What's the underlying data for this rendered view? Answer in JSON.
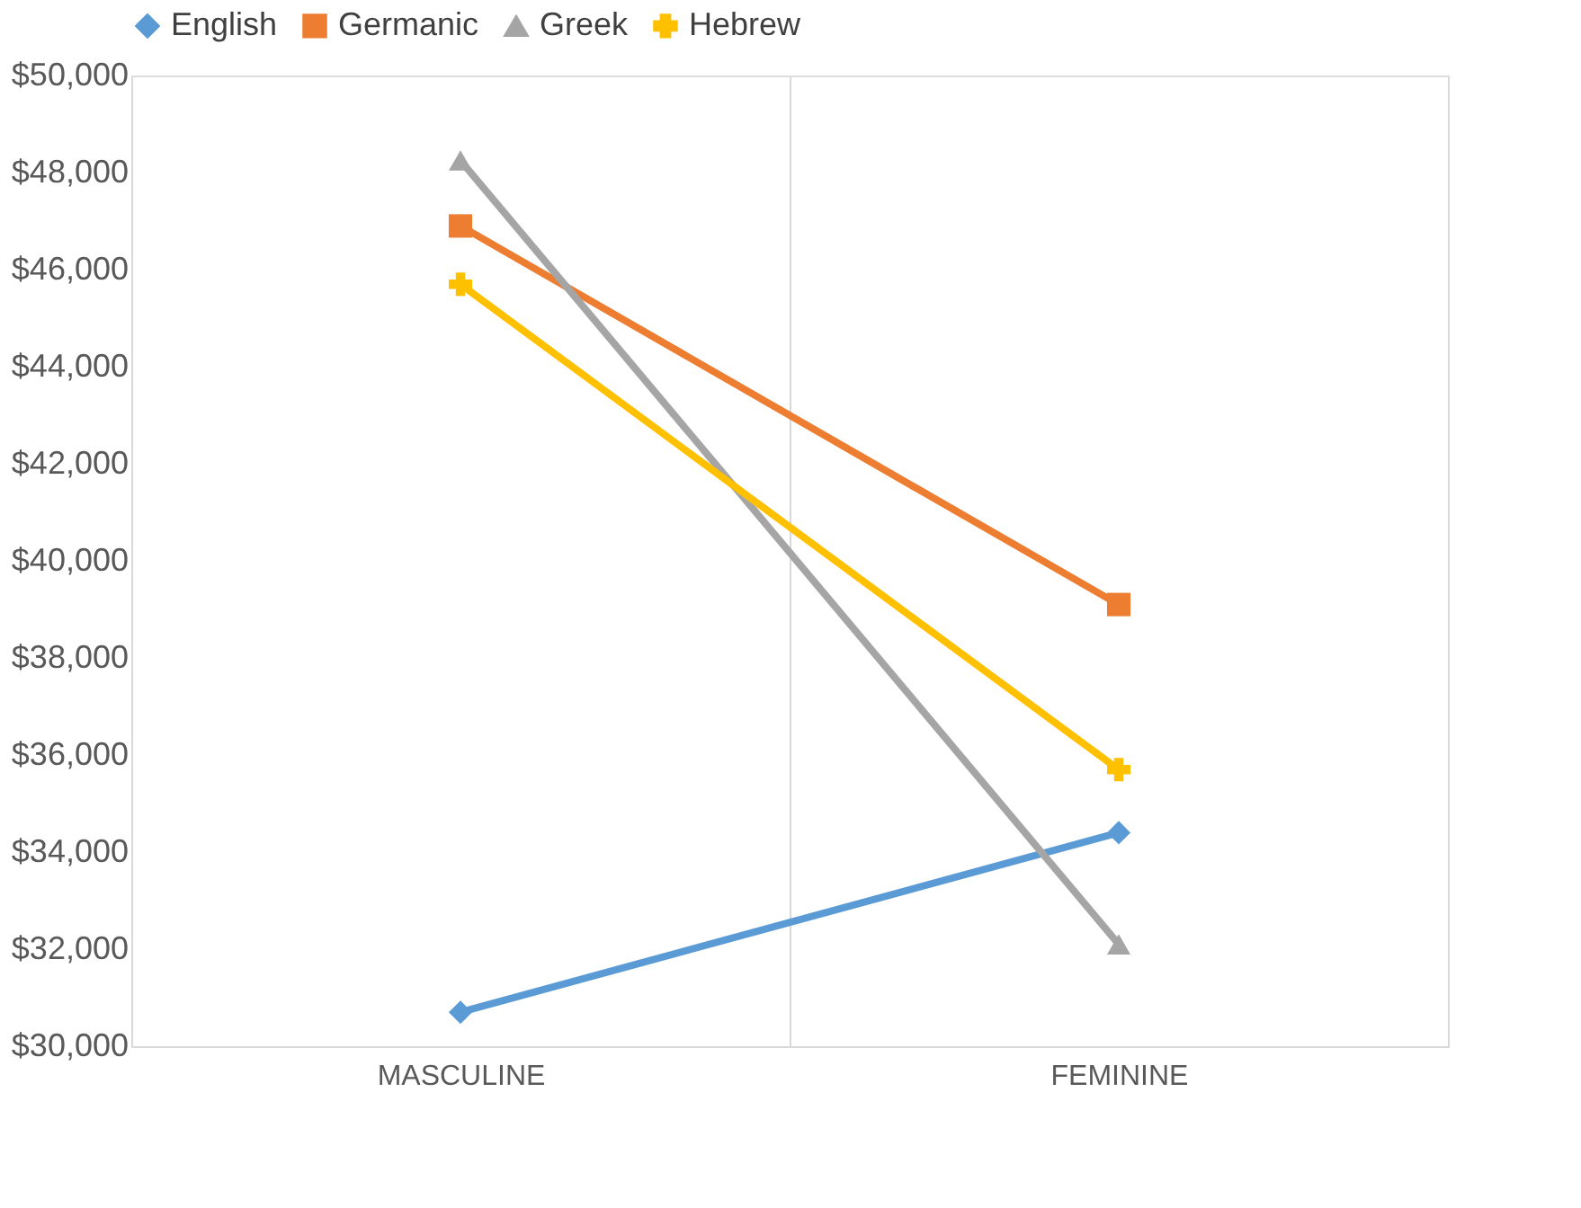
{
  "chart_data": {
    "type": "line",
    "categories": [
      "MASCULINE",
      "FEMININE"
    ],
    "series": [
      {
        "name": "English",
        "color": "#5b9bd5",
        "marker": "diamond",
        "values": [
          30700,
          34400
        ]
      },
      {
        "name": "Germanic",
        "color": "#ed7d31",
        "marker": "square",
        "values": [
          46900,
          39100
        ]
      },
      {
        "name": "Greek",
        "color": "#a5a5a5",
        "marker": "triangle",
        "values": [
          48250,
          32100
        ]
      },
      {
        "name": "Hebrew",
        "color": "#ffc000",
        "marker": "cross",
        "values": [
          45700,
          35700
        ]
      }
    ],
    "ylim": [
      30000,
      50000
    ],
    "yticks": [
      {
        "value": 30000,
        "label": "$30,000"
      },
      {
        "value": 32000,
        "label": "$32,000"
      },
      {
        "value": 34000,
        "label": "$34,000"
      },
      {
        "value": 36000,
        "label": "$36,000"
      },
      {
        "value": 38000,
        "label": "$38,000"
      },
      {
        "value": 40000,
        "label": "$40,000"
      },
      {
        "value": 42000,
        "label": "$42,000"
      },
      {
        "value": 44000,
        "label": "$44,000"
      },
      {
        "value": 46000,
        "label": "$46,000"
      },
      {
        "value": 48000,
        "label": "$48,000"
      },
      {
        "value": 50000,
        "label": "$50,000"
      }
    ],
    "grid": "x",
    "legend": "top",
    "line_style": "solid"
  }
}
